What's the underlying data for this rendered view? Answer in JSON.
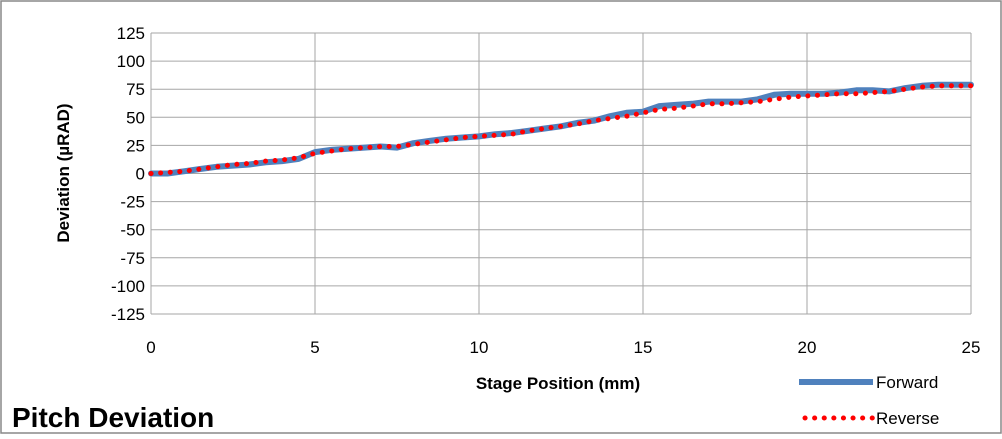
{
  "chart_data": {
    "type": "line",
    "title": "Pitch Deviation",
    "xlabel": "Stage Position (mm)",
    "ylabel": "Deviation (µRAD)",
    "xlim": [
      0,
      25
    ],
    "ylim": [
      -125,
      125
    ],
    "x_ticks": [
      "0",
      "5",
      "10",
      "15",
      "20",
      "25"
    ],
    "y_ticks": [
      "125",
      "100",
      "75",
      "50",
      "25",
      "0",
      "-25",
      "-50",
      "-75",
      "-100",
      "-125"
    ],
    "grid": true,
    "legend_position": "bottom-right",
    "series": [
      {
        "name": "Forward",
        "color": "#4f81bd",
        "style": "solid",
        "x": [
          0,
          0.5,
          1,
          1.5,
          2,
          2.5,
          3,
          3.5,
          4,
          4.5,
          5,
          5.5,
          6,
          6.5,
          7,
          7.5,
          8,
          8.5,
          9,
          9.5,
          10,
          10.5,
          11,
          11.5,
          12,
          12.5,
          13,
          13.5,
          14,
          14.5,
          15,
          15.5,
          16,
          16.5,
          17,
          17.5,
          18,
          18.5,
          19,
          19.5,
          20,
          20.5,
          21,
          21.5,
          22,
          22.5,
          23,
          23.5,
          24,
          24.5,
          25
        ],
        "y": [
          0,
          0,
          2,
          4,
          6,
          7,
          8,
          10,
          11,
          13,
          19,
          21,
          22,
          23,
          24,
          23,
          27,
          29,
          31,
          32,
          33,
          35,
          36,
          38,
          40,
          42,
          45,
          47,
          51,
          54,
          55,
          60,
          61,
          62,
          64,
          64,
          64,
          66,
          70,
          71,
          71,
          71,
          72,
          74,
          74,
          73,
          76,
          78,
          79,
          79,
          79
        ]
      },
      {
        "name": "Reverse",
        "color": "#ff0000",
        "style": "dotted",
        "x": [
          0,
          0.5,
          1,
          1.5,
          2,
          2.5,
          3,
          3.5,
          4,
          4.5,
          5,
          5.5,
          6,
          6.5,
          7,
          7.5,
          8,
          8.5,
          9,
          9.5,
          10,
          10.5,
          11,
          11.5,
          12,
          12.5,
          13,
          13.5,
          14,
          14.5,
          15,
          15.5,
          16,
          16.5,
          17,
          17.5,
          18,
          18.5,
          19,
          19.5,
          20,
          20.5,
          21,
          21.5,
          22,
          22.5,
          23,
          23.5,
          24,
          24.5,
          25
        ],
        "y": [
          0,
          1,
          2,
          4,
          6,
          8,
          9,
          11,
          12,
          14,
          18,
          20,
          22,
          23,
          24,
          24,
          26,
          28,
          30,
          32,
          33,
          34,
          35,
          38,
          40,
          42,
          44,
          47,
          49,
          51,
          54,
          57,
          58,
          60,
          62,
          62,
          63,
          64,
          66,
          68,
          69,
          70,
          71,
          71,
          72,
          73,
          75,
          77,
          78,
          78,
          78
        ]
      }
    ]
  }
}
